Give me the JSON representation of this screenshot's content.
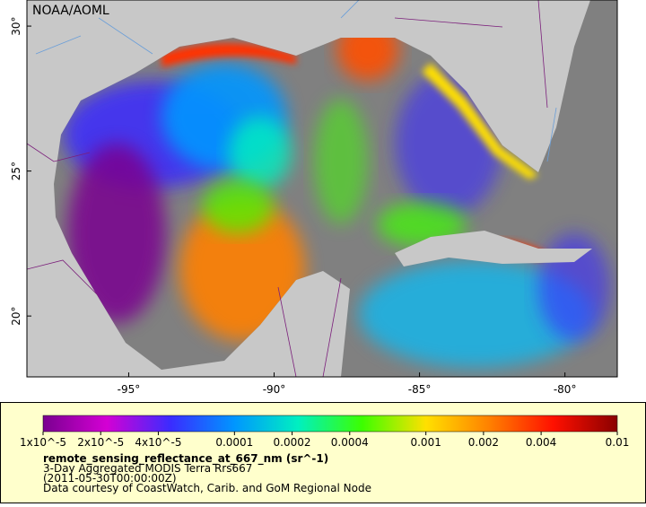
{
  "map": {
    "logo": "NOAA/AOML",
    "lon_range": [
      -98.5,
      -78.2
    ],
    "lat_range": [
      17.9,
      30.9
    ],
    "lon_ticks": [
      {
        "value": -95,
        "label": "-95°"
      },
      {
        "value": -90,
        "label": "-90°"
      },
      {
        "value": -85,
        "label": "-85°"
      },
      {
        "value": -80,
        "label": "-80°"
      }
    ],
    "lat_ticks": [
      {
        "value": 30,
        "label": "30°"
      },
      {
        "value": 25,
        "label": "25°"
      },
      {
        "value": 20,
        "label": "20°"
      }
    ]
  },
  "colorbar": {
    "scale": "log",
    "range": [
      1e-05,
      0.01
    ],
    "colors": [
      "#7a0090",
      "#d400d4",
      "#3a2cff",
      "#0096ff",
      "#00f0c0",
      "#3cff00",
      "#ffe000",
      "#ff8000",
      "#ff1000",
      "#8a0000"
    ],
    "ticks": [
      {
        "value": 1e-05,
        "label": "1x10^-5"
      },
      {
        "value": 2e-05,
        "label": "2x10^-5"
      },
      {
        "value": 4e-05,
        "label": "4x10^-5"
      },
      {
        "value": 0.0001,
        "label": "0.0001"
      },
      {
        "value": 0.0002,
        "label": "0.0002"
      },
      {
        "value": 0.0004,
        "label": "0.0004"
      },
      {
        "value": 0.001,
        "label": "0.001"
      },
      {
        "value": 0.002,
        "label": "0.002"
      },
      {
        "value": 0.004,
        "label": "0.004"
      },
      {
        "value": 0.01,
        "label": "0.01"
      }
    ]
  },
  "legend": {
    "variable": "remote_sensing_reflectance_at_667_nm (sr^-1)",
    "lines": [
      "3-Day Aggregated MODIS Terra Rrs667",
      "(2011-05-30T00:00:00Z)",
      "Data courtesy of CoastWatch, Carib. and GoM Regional Node"
    ]
  }
}
